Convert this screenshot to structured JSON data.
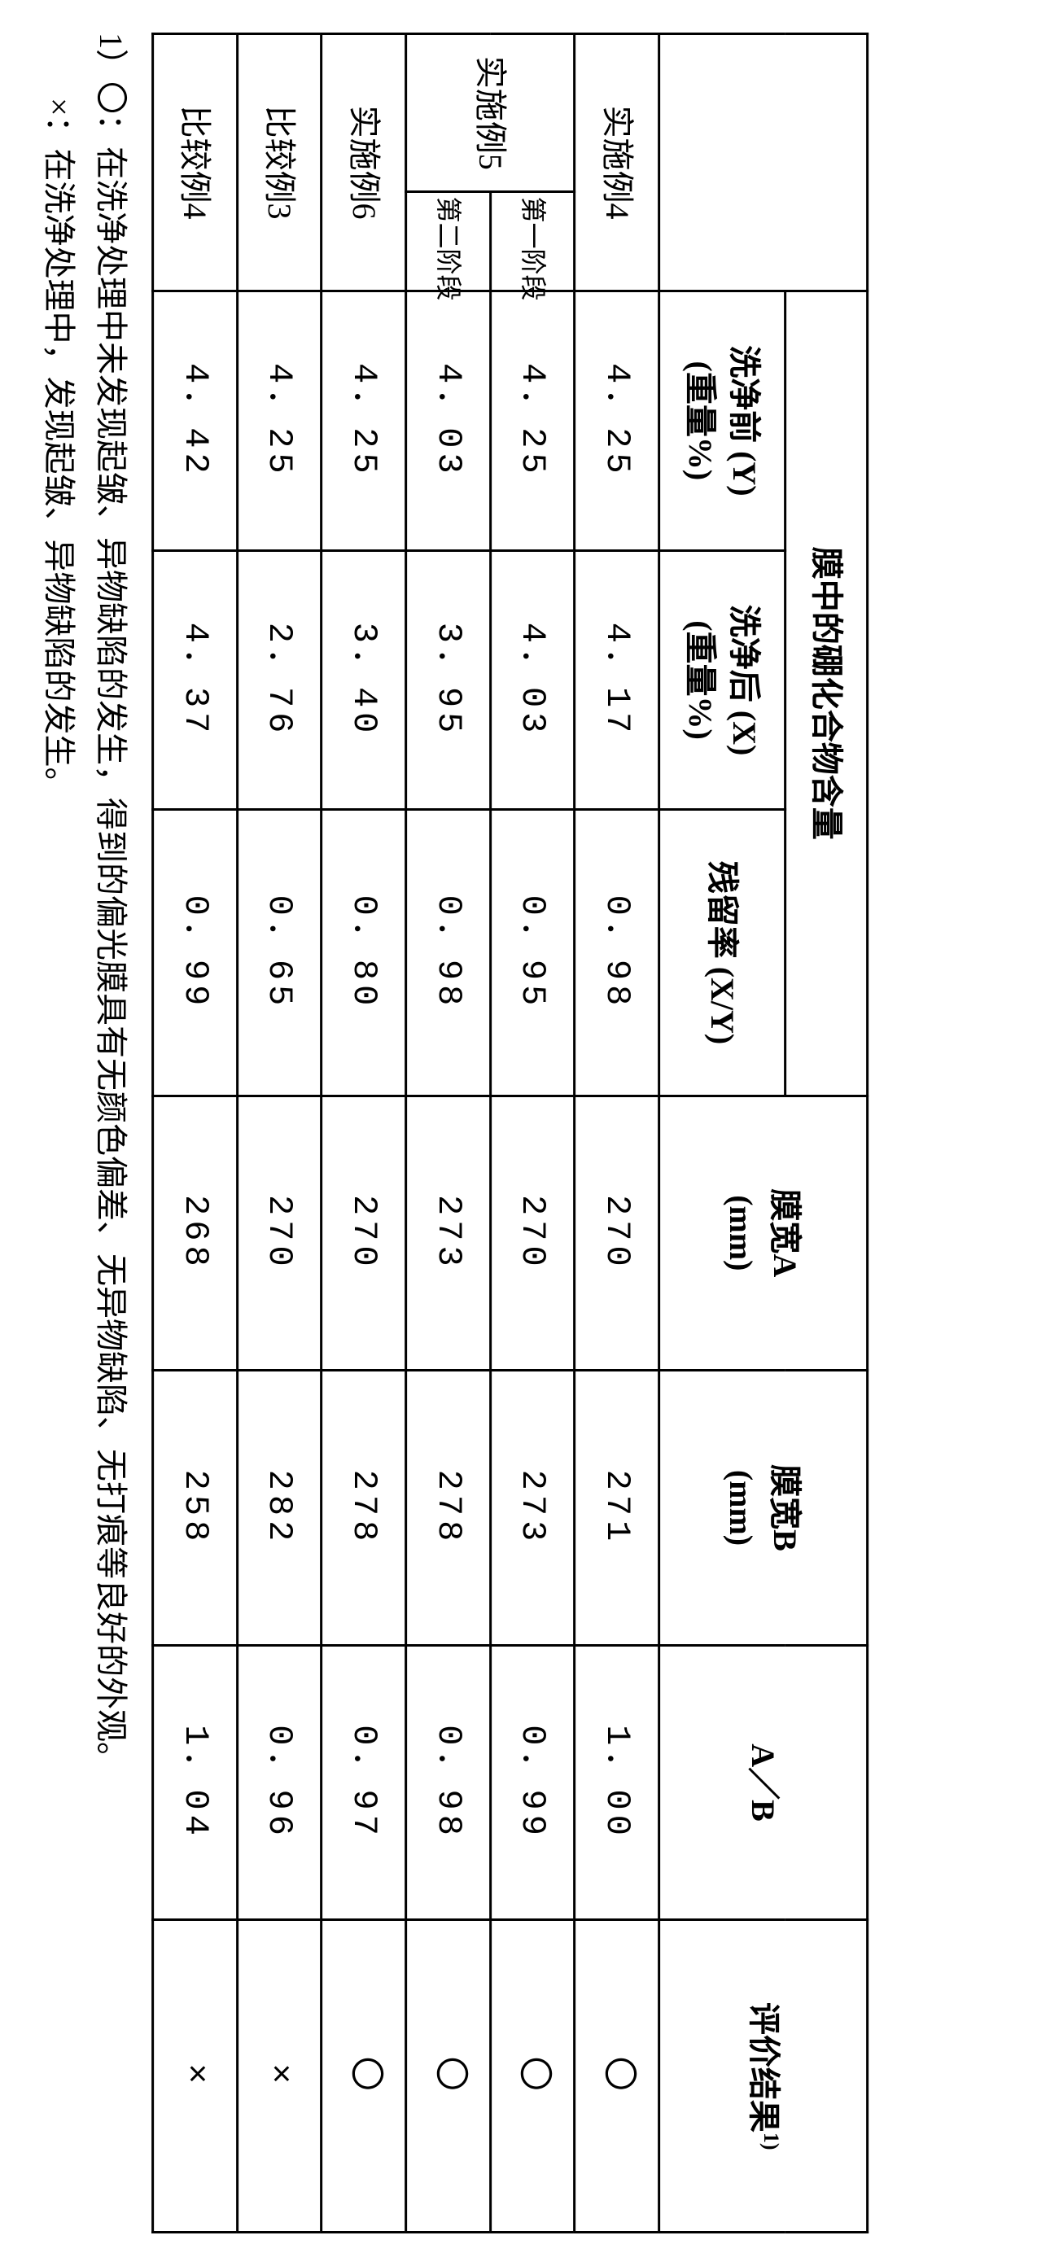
{
  "table": {
    "group_header": "膜中的硼化合物含量",
    "headers": {
      "before_wash": "洗净前 (Y)\n(重量%)",
      "after_wash": "洗净后 (X)\n(重量%)",
      "retention": "残留率 (X/Y)",
      "width_a": "膜宽A\n(mm)",
      "width_b": "膜宽B\n(mm)",
      "ratio_ab": "A／B",
      "result": "评价结果",
      "result_sup": "1)"
    },
    "stage1": "第一阶段",
    "stage2": "第二阶段",
    "rows": {
      "r1_label": "实施例4",
      "r1": {
        "y": "4．25",
        "x": "4．17",
        "xy": "0．98",
        "a": "270",
        "b": "271",
        "ab": "1．00",
        "res": "〇"
      },
      "r2_label": "实施例5",
      "r2a": {
        "y": "4．25",
        "x": "4．03",
        "xy": "0．95",
        "a": "270",
        "b": "273",
        "ab": "0．99",
        "res": "〇"
      },
      "r2b": {
        "y": "4．03",
        "x": "3．95",
        "xy": "0．98",
        "a": "273",
        "b": "278",
        "ab": "0．98",
        "res": "〇"
      },
      "r3_label": "实施例6",
      "r3": {
        "y": "4．25",
        "x": "3．40",
        "xy": "0．80",
        "a": "270",
        "b": "278",
        "ab": "0．97",
        "res": "〇"
      },
      "r4_label": "比较例3",
      "r4": {
        "y": "4．25",
        "x": "2．76",
        "xy": "0．65",
        "a": "270",
        "b": "282",
        "ab": "0．96",
        "res": "×"
      },
      "r5_label": "比较例4",
      "r5": {
        "y": "4．42",
        "x": "4．37",
        "xy": "0．99",
        "a": "268",
        "b": "258",
        "ab": "1．04",
        "res": "×"
      }
    }
  },
  "footnote": {
    "line1": "1）〇：在洗净处理中未发现起皱、异物缺陷的发生，得到的偏光膜具有无颜色偏差、无异物缺陷、无打痕等良好的外观。",
    "line2": "　　×：在洗净处理中，发现起皱、异物缺陷的发生。"
  }
}
